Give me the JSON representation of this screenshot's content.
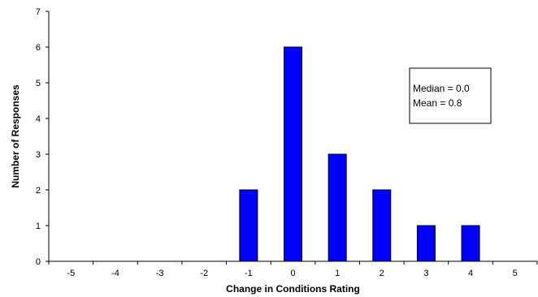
{
  "chart_data": {
    "type": "bar",
    "categories": [
      "-5",
      "-4",
      "-3",
      "-2",
      "-1",
      "0",
      "1",
      "2",
      "3",
      "4",
      "5"
    ],
    "values": [
      0,
      0,
      0,
      0,
      2,
      6,
      3,
      2,
      1,
      1,
      0
    ],
    "yticks": [
      "0",
      "1",
      "2",
      "3",
      "4",
      "5",
      "6",
      "7"
    ],
    "title": "",
    "xlabel": "Change in Conditions Rating",
    "ylabel": "Number of Responses",
    "ylim": [
      0,
      7
    ],
    "grid": false,
    "bar_color": "#0000FF",
    "annotation": {
      "lines": [
        "Median = 0.0",
        "Mean = 0.8"
      ],
      "placement": "top-right"
    }
  }
}
